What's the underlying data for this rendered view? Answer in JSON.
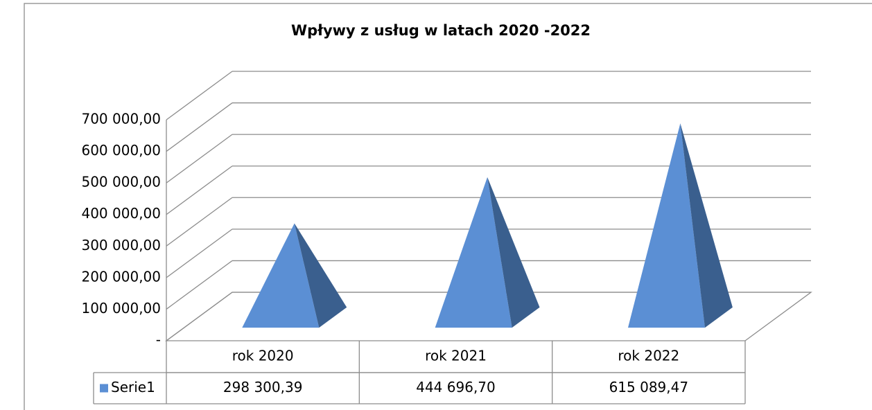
{
  "chart_data": {
    "type": "pyramid3d",
    "title": "Wpływy z usług w latach 2020 -2022",
    "categories": [
      "rok 2020",
      "rok 2021",
      "rok 2022"
    ],
    "series": [
      {
        "name": "Serie1",
        "color": "#5b8fd4",
        "values": [
          298300.39,
          444696.7,
          615089.47
        ],
        "value_labels": [
          "298 300,39",
          "444 696,70",
          "615 089,47"
        ]
      }
    ],
    "ylim": [
      0,
      700000
    ],
    "yticks": [
      {
        "value": 0,
        "label": "-"
      },
      {
        "value": 100000,
        "label": "100 000,00"
      },
      {
        "value": 200000,
        "label": "200 000,00"
      },
      {
        "value": 300000,
        "label": "300 000,00"
      },
      {
        "value": 400000,
        "label": "400 000,00"
      },
      {
        "value": 500000,
        "label": "500 000,00"
      },
      {
        "value": 600000,
        "label": "600 000,00"
      },
      {
        "value": 700000,
        "label": "700 000,00"
      }
    ],
    "grid": true,
    "data_table": true
  }
}
